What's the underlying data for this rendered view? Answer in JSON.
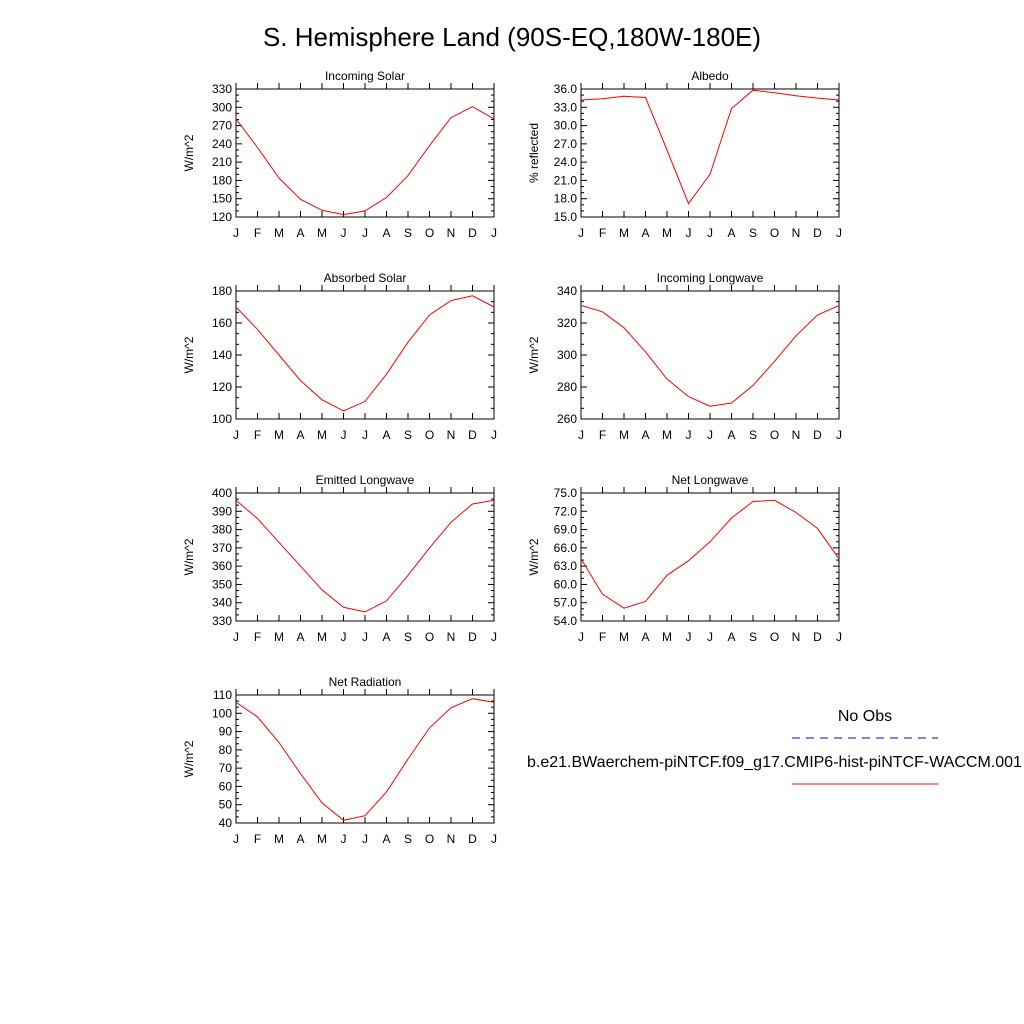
{
  "page_title": "S. Hemisphere Land (90S-EQ,180W-180E)",
  "month_labels": [
    "J",
    "F",
    "M",
    "A",
    "M",
    "J",
    "J",
    "A",
    "S",
    "O",
    "N",
    "D",
    "J"
  ],
  "legend": {
    "obs_label": "No Obs",
    "model_label": "b.e21.BWaerchem-piNTCF.f09_g17.CMIP6-hist-piNTCF-WACCM.001",
    "obs_color": "#0000ff",
    "model_color": "#ff0000"
  },
  "line_color": "#ff0000",
  "chart_data": [
    {
      "type": "line",
      "title": "Incoming Solar",
      "ylabel": "W/m^2",
      "ylim": [
        120,
        330
      ],
      "yticks": [
        "330",
        "300",
        "270",
        "240",
        "210",
        "180",
        "150",
        "120"
      ],
      "x": [
        "J",
        "F",
        "M",
        "A",
        "M",
        "J",
        "J",
        "A",
        "S",
        "O",
        "N",
        "D",
        "J"
      ],
      "values": [
        281,
        234,
        184,
        149,
        131,
        124,
        130,
        152,
        188,
        237,
        283,
        301,
        281
      ]
    },
    {
      "type": "line",
      "title": "Albedo",
      "ylabel": "% reflected",
      "ylim": [
        15.0,
        36.0
      ],
      "yticks": [
        "36.0",
        "33.0",
        "30.0",
        "27.0",
        "24.0",
        "21.0",
        "18.0",
        "15.0"
      ],
      "x": [
        "J",
        "F",
        "M",
        "A",
        "M",
        "J",
        "J",
        "A",
        "S",
        "O",
        "N",
        "D",
        "J"
      ],
      "values": [
        34.2,
        34.4,
        34.8,
        34.6,
        26.0,
        17.2,
        22.0,
        32.8,
        35.8,
        35.4,
        34.9,
        34.5,
        34.2
      ]
    },
    {
      "type": "line",
      "title": "Absorbed Solar",
      "ylabel": "W/m^2",
      "ylim": [
        100,
        180
      ],
      "yticks": [
        "180",
        "160",
        "140",
        "120",
        "100"
      ],
      "x": [
        "J",
        "F",
        "M",
        "A",
        "M",
        "J",
        "J",
        "A",
        "S",
        "O",
        "N",
        "D",
        "J"
      ],
      "values": [
        170,
        156,
        140,
        124,
        112,
        105,
        111,
        128,
        148,
        165,
        174,
        177,
        170
      ]
    },
    {
      "type": "line",
      "title": "Incoming Longwave",
      "ylabel": "W/m^2",
      "ylim": [
        260,
        340
      ],
      "yticks": [
        "340",
        "320",
        "300",
        "280",
        "260"
      ],
      "x": [
        "J",
        "F",
        "M",
        "A",
        "M",
        "J",
        "J",
        "A",
        "S",
        "O",
        "N",
        "D",
        "J"
      ],
      "values": [
        331,
        327,
        317,
        302,
        285,
        274,
        268,
        270,
        281,
        296,
        312,
        325,
        331
      ]
    },
    {
      "type": "line",
      "title": "Emitted Longwave",
      "ylabel": "W/m^2",
      "ylim": [
        330,
        400
      ],
      "yticks": [
        "400",
        "390",
        "380",
        "370",
        "360",
        "350",
        "340",
        "330"
      ],
      "x": [
        "J",
        "F",
        "M",
        "A",
        "M",
        "J",
        "J",
        "A",
        "S",
        "O",
        "N",
        "D",
        "J"
      ],
      "values": [
        396,
        386,
        373,
        360,
        347,
        337.5,
        335,
        341,
        355,
        370,
        384,
        394,
        396
      ]
    },
    {
      "type": "line",
      "title": "Net Longwave",
      "ylabel": "W/m^2",
      "ylim": [
        54.0,
        75.0
      ],
      "yticks": [
        "75.0",
        "72.0",
        "69.0",
        "66.0",
        "63.0",
        "60.0",
        "57.0",
        "54.0"
      ],
      "x": [
        "J",
        "F",
        "M",
        "A",
        "M",
        "J",
        "J",
        "A",
        "S",
        "O",
        "N",
        "D",
        "J"
      ],
      "values": [
        64.2,
        58.4,
        56.1,
        57.2,
        61.5,
        63.9,
        67.0,
        70.9,
        73.6,
        73.8,
        71.8,
        69.2,
        64.2
      ]
    },
    {
      "type": "line",
      "title": "Net Radiation",
      "ylabel": "W/m^2",
      "ylim": [
        40,
        110
      ],
      "yticks": [
        "110",
        "100",
        "90",
        "80",
        "70",
        "60",
        "50",
        "40"
      ],
      "x": [
        "J",
        "F",
        "M",
        "A",
        "M",
        "J",
        "J",
        "A",
        "S",
        "O",
        "N",
        "D",
        "J"
      ],
      "values": [
        106,
        98,
        84,
        67,
        51,
        41.5,
        44,
        57,
        75,
        92,
        103,
        108,
        106
      ]
    }
  ]
}
